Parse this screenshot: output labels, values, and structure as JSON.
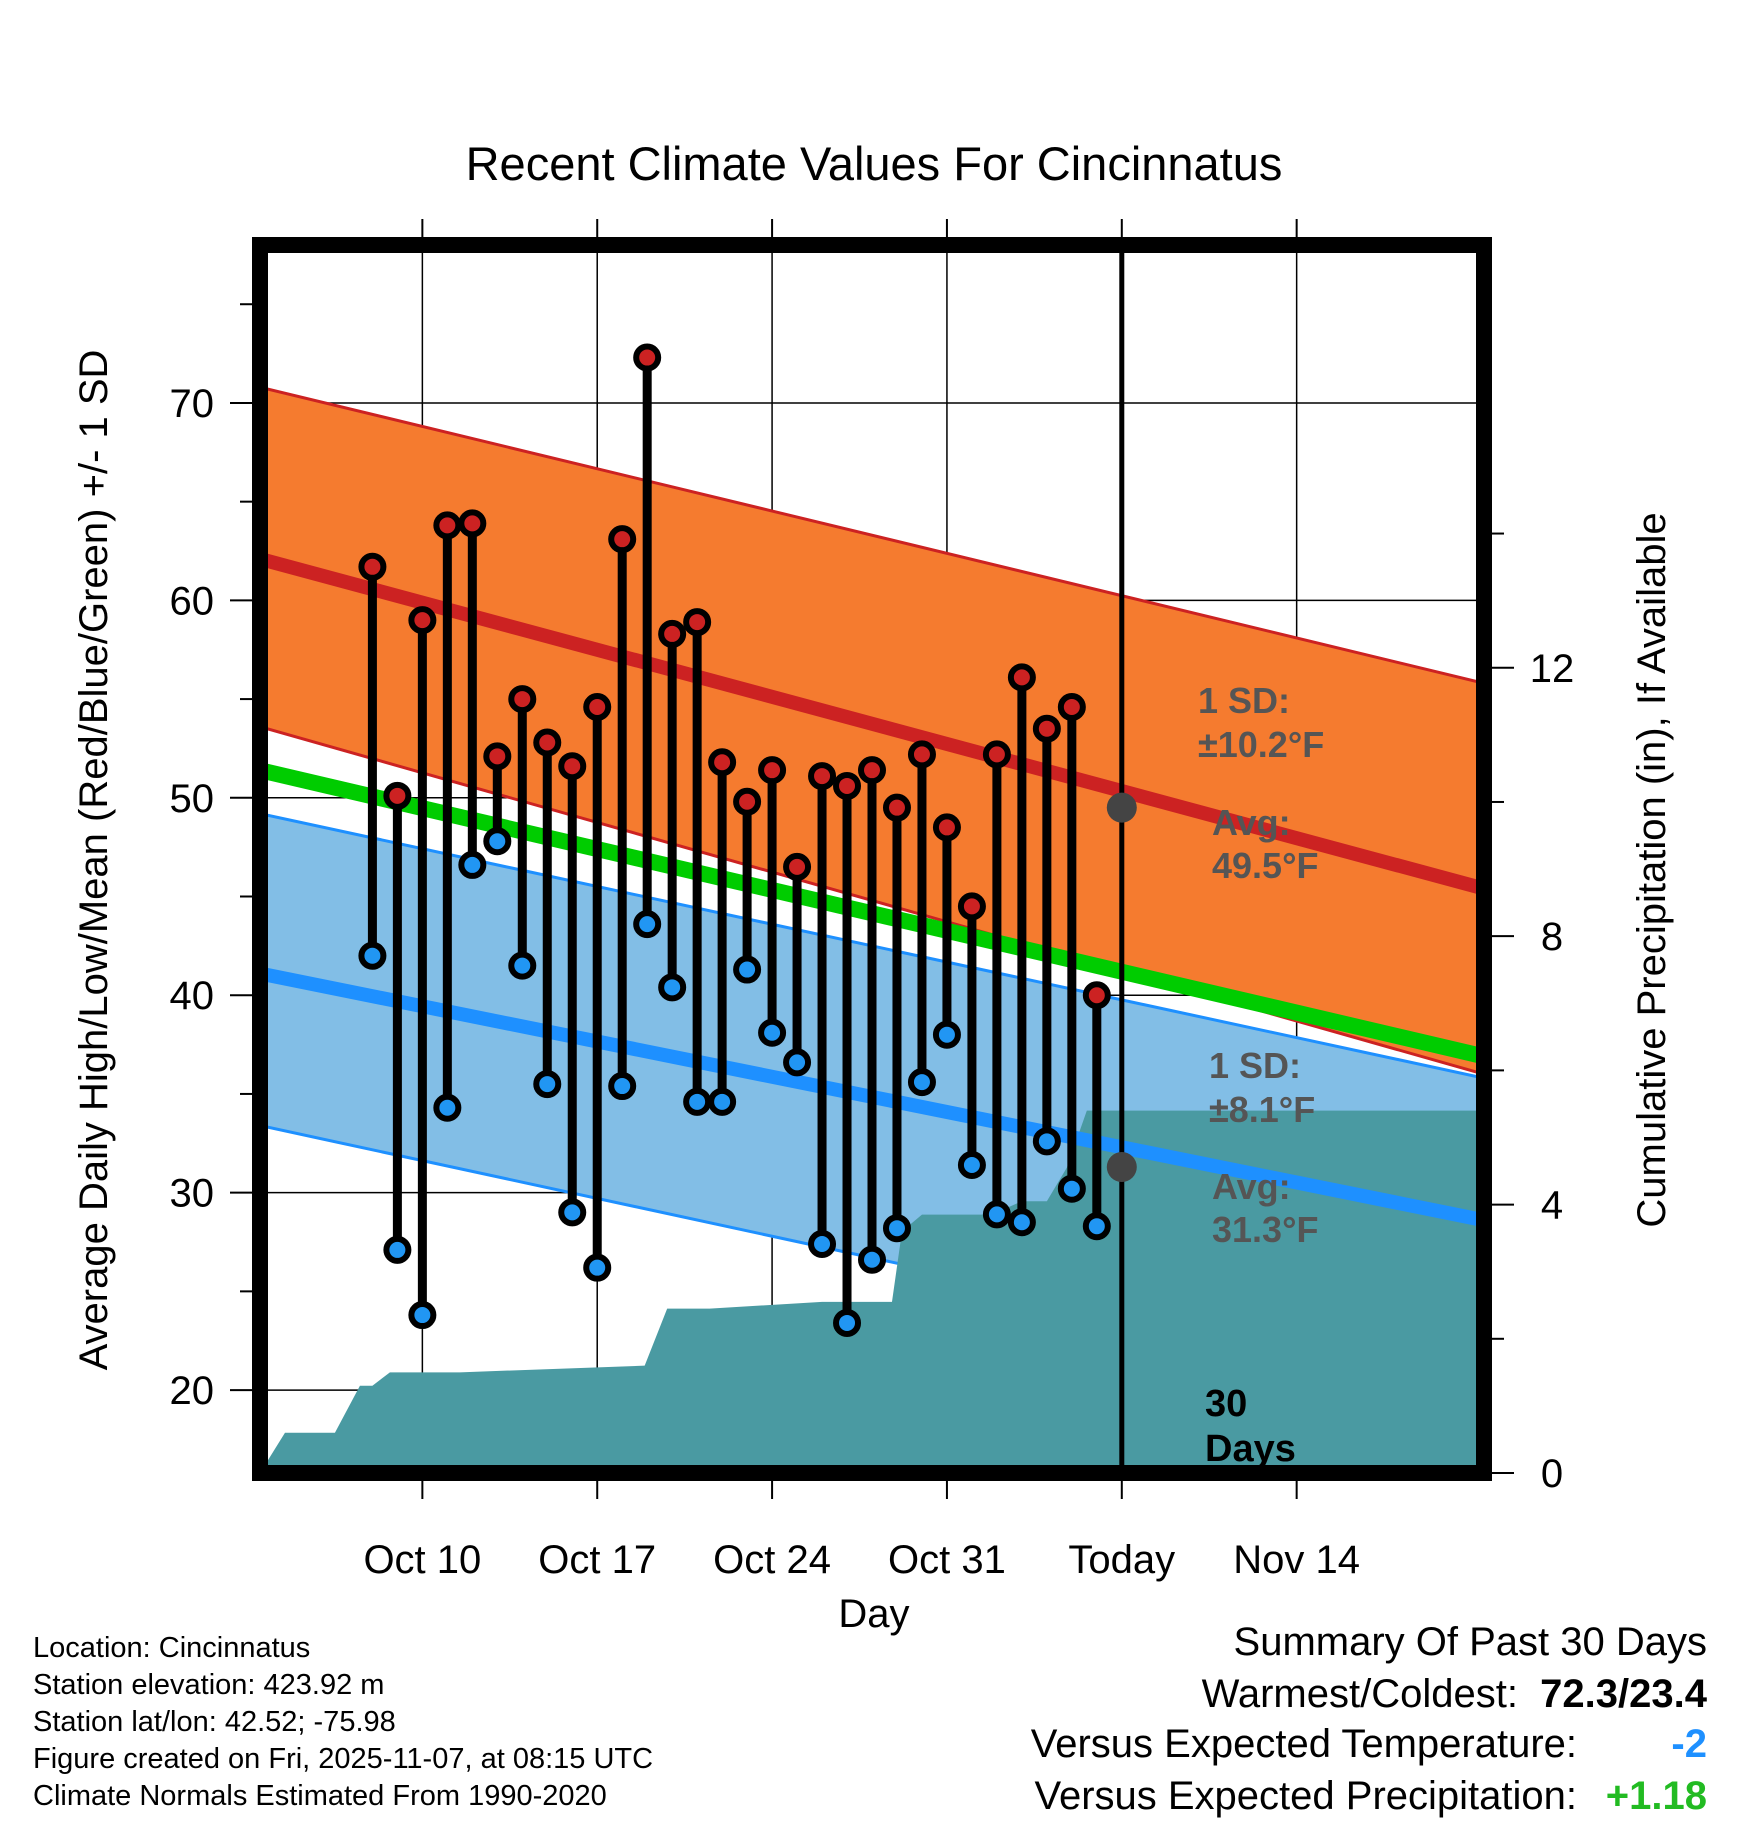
{
  "chart_data": {
    "type": "line",
    "title": "Recent Climate Values For Cincinnatus",
    "xlabel": "Day",
    "ylabel_left": "Average Daily High/Low/Mean (Red/Blue/Green) +/- 1 SD",
    "ylabel_right": "Cumulative Precipitation (in), If Available",
    "x_range_days": [
      -34.5,
      14.5
    ],
    "ylim_left": [
      15.8,
      78.0
    ],
    "ylim_right": [
      0,
      18.3
    ],
    "left_ticks": [
      "20",
      "30",
      "40",
      "50",
      "60",
      "70"
    ],
    "right_ticks": [
      "0",
      "4",
      "8",
      "12"
    ],
    "x_ticks": [
      {
        "day": -28,
        "label": "Oct 10"
      },
      {
        "day": -21,
        "label": "Oct 17"
      },
      {
        "day": -14,
        "label": "Oct 24"
      },
      {
        "day": -7,
        "label": "Oct 31"
      },
      {
        "day": 0,
        "label": "Today"
      },
      {
        "day": 7,
        "label": "Nov 14"
      }
    ],
    "normal_high": {
      "start": 62.1,
      "end": 45.4,
      "sd_upper_start": 70.8,
      "sd_upper_end": 55.8,
      "sd_lower_start": 53.6,
      "sd_lower_end": 36.0
    },
    "normal_low": {
      "start": 41.1,
      "end": 28.6,
      "sd_upper_start": 49.2,
      "sd_upper_end": 35.8,
      "sd_lower_start": 33.4,
      "sd_lower_end": 20.0
    },
    "normal_mean": {
      "start": 51.4,
      "end": 36.9
    },
    "daily": [
      {
        "day": -30,
        "high": 61.7,
        "low": 42.0
      },
      {
        "day": -29,
        "high": 50.1,
        "low": 27.1
      },
      {
        "day": -28,
        "high": 59.0,
        "low": 23.8
      },
      {
        "day": -27,
        "high": 63.8,
        "low": 34.3
      },
      {
        "day": -26,
        "high": 63.9,
        "low": 46.6
      },
      {
        "day": -25,
        "high": 52.1,
        "low": 47.8
      },
      {
        "day": -24,
        "high": 55.0,
        "low": 41.5
      },
      {
        "day": -23,
        "high": 52.8,
        "low": 35.5
      },
      {
        "day": -22,
        "high": 51.6,
        "low": 29.0
      },
      {
        "day": -21,
        "high": 54.6,
        "low": 26.2
      },
      {
        "day": -20,
        "high": 63.1,
        "low": 35.4
      },
      {
        "day": -19,
        "high": 72.3,
        "low": 43.6
      },
      {
        "day": -18,
        "high": 58.3,
        "low": 40.4
      },
      {
        "day": -17,
        "high": 58.9,
        "low": 34.6
      },
      {
        "day": -16,
        "high": 51.8,
        "low": 34.6
      },
      {
        "day": -15,
        "high": 49.8,
        "low": 41.3
      },
      {
        "day": -14,
        "high": 51.4,
        "low": 38.1
      },
      {
        "day": -13,
        "high": 46.5,
        "low": 36.6
      },
      {
        "day": -12,
        "high": 51.1,
        "low": 27.4
      },
      {
        "day": -11,
        "high": 50.6,
        "low": 23.4
      },
      {
        "day": -10,
        "high": 51.4,
        "low": 26.6
      },
      {
        "day": -9,
        "high": 49.5,
        "low": 28.2
      },
      {
        "day": -8,
        "high": 52.2,
        "low": 35.6
      },
      {
        "day": -7,
        "high": 48.5,
        "low": 38.0
      },
      {
        "day": -6,
        "high": 44.5,
        "low": 31.4
      },
      {
        "day": -5,
        "high": 52.2,
        "low": 28.9
      },
      {
        "day": -4,
        "high": 56.1,
        "low": 28.5
      },
      {
        "day": -3,
        "high": 53.5,
        "low": 32.6
      },
      {
        "day": -2,
        "high": 54.6,
        "low": 30.2
      },
      {
        "day": -1,
        "high": 40.0,
        "low": 28.3
      }
    ],
    "precip_cumulative": [
      [
        -34.5,
        0.0
      ],
      [
        -33.5,
        0.6
      ],
      [
        -32.0,
        0.6
      ],
      [
        -31.5,
        0.6
      ],
      [
        -30.5,
        1.3
      ],
      [
        -30.0,
        1.3
      ],
      [
        -29.3,
        1.5
      ],
      [
        -26.5,
        1.5
      ],
      [
        -19.1,
        1.6
      ],
      [
        -18.2,
        2.45
      ],
      [
        -16.5,
        2.45
      ],
      [
        -12.0,
        2.55
      ],
      [
        -11.0,
        2.55
      ],
      [
        -9.2,
        2.55
      ],
      [
        -8.8,
        3.6
      ],
      [
        -8.0,
        3.85
      ],
      [
        -7.6,
        3.85
      ],
      [
        -5.2,
        3.85
      ],
      [
        -4.0,
        4.05
      ],
      [
        -3.0,
        4.05
      ],
      [
        -2.2,
        4.55
      ],
      [
        -1.4,
        5.4
      ],
      [
        -1.0,
        5.4
      ],
      [
        14.5,
        5.4
      ]
    ],
    "annotations": {
      "high_sd_label": "1 SD:",
      "high_sd_value": "±10.2°F",
      "high_avg_label": "Avg:",
      "high_avg_value": "49.5°F",
      "low_sd_label": "1 SD:",
      "low_sd_value": "±8.1°F",
      "low_avg_label": "Avg:",
      "low_avg_value": "31.3°F",
      "today_today_high_avg": 49.5,
      "today_low_avg": 31.3,
      "days_line1": "30",
      "days_line2": "Days"
    }
  },
  "info": {
    "location": "Location: Cincinnatus",
    "elevation": "Station elevation: 423.92 m",
    "latlon": "Station lat/lon: 42.52; -75.98",
    "created": "Figure created on Fri, 2025-11-07, at 08:15 UTC",
    "normals": "Climate Normals Estimated From 1990-2020"
  },
  "summary": {
    "title": "Summary Of Past 30 Days",
    "warmest_label": "Warmest/Coldest:",
    "warmest_value": "72.3/23.4",
    "temp_label": "Versus Expected Temperature:",
    "temp_value": "-2",
    "temp_color": "#1e90ff",
    "precip_label": "Versus Expected Precipitation:",
    "precip_value": "+1.18",
    "precip_color": "#22bb22"
  },
  "colors": {
    "high_band": "#f57b2f",
    "high_line": "#cc2222",
    "low_band": "#82bee6",
    "low_line": "#1e90ff",
    "mean_line": "#00cc00",
    "precip": "#4a9aa2",
    "high_dot": "#cc2222",
    "low_dot": "#2196f3",
    "annot": "#555555"
  }
}
